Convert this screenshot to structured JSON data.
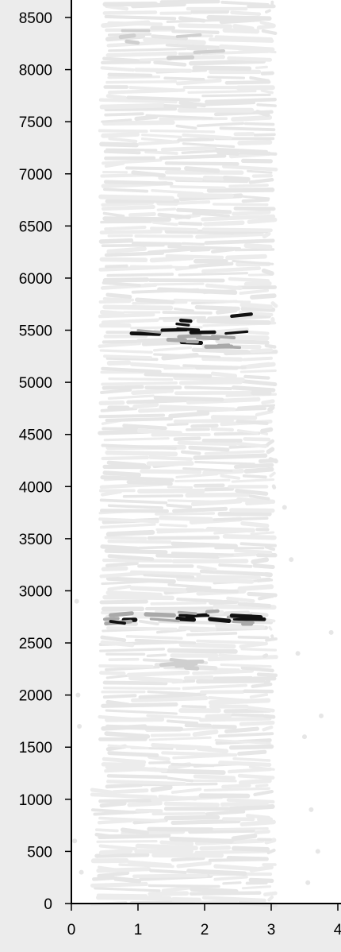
{
  "chart_data": {
    "type": "heatmap",
    "title": "",
    "xlabel": "",
    "ylabel": "",
    "xlim": [
      0,
      4
    ],
    "ylim": [
      0,
      8650
    ],
    "x_ticks": [
      "0",
      "1",
      "2",
      "3",
      "4"
    ],
    "y_ticks": [
      "0",
      "500",
      "1000",
      "1500",
      "2000",
      "2500",
      "3000",
      "3500",
      "4000",
      "4500",
      "5000",
      "5500",
      "6000",
      "6500",
      "7000",
      "7500",
      "8000",
      "8500"
    ],
    "grid": false,
    "colors": {
      "background": "#ececec",
      "plot_background": "#ffffff",
      "trace": "#e6e6e6",
      "trace_light": "#ececec",
      "mid": "#a9a9a9",
      "dark": "#111111"
    },
    "x_edges": [
      0.4,
      3.05
    ],
    "bands": [
      {
        "y_from": 0,
        "y_to": 8650,
        "x_from": 0.5,
        "x_to": 3.05,
        "intensity": "light"
      },
      {
        "y_from": 5340,
        "y_to": 5640,
        "x_from": 0.9,
        "x_to": 2.75,
        "intensity": "dark"
      },
      {
        "y_from": 2680,
        "y_to": 2800,
        "x_from": 0.4,
        "x_to": 2.9,
        "intensity": "dark"
      },
      {
        "y_from": 8100,
        "y_to": 8450,
        "x_from": 0.7,
        "x_to": 2.3,
        "intensity": "faint"
      },
      {
        "y_from": 2250,
        "y_to": 2350,
        "x_from": 1.3,
        "x_to": 2.0,
        "intensity": "faint"
      }
    ]
  }
}
